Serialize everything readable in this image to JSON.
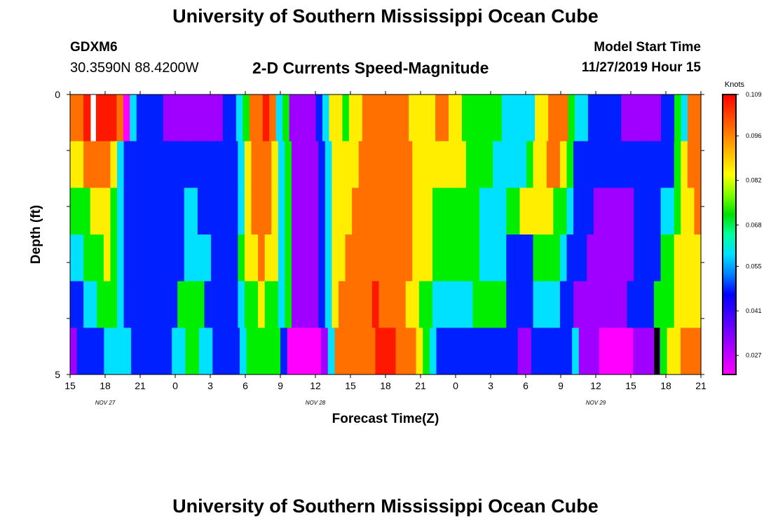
{
  "header": {
    "title": "University of Southern Mississippi Ocean Cube",
    "station": "GDXM6",
    "coords": "30.3590N 88.4200W",
    "subtitle": "2-D Currents Speed-Magnitude",
    "start_label": "Model Start Time",
    "start_time": "11/27/2019 Hour 15"
  },
  "footer": {
    "title": "University of Southern Mississippi Ocean Cube"
  },
  "chart_data": {
    "type": "heatmap",
    "xlabel": "Forecast Time(Z)",
    "ylabel": "Depth (ft)",
    "ylim": [
      0,
      5
    ],
    "y_ticks": [
      "0",
      "5"
    ],
    "x_tick_labels": [
      "15",
      "18",
      "21",
      "0",
      "3",
      "6",
      "9",
      "12",
      "15",
      "18",
      "21",
      "0",
      "3",
      "6",
      "9",
      "12",
      "15",
      "18",
      "21"
    ],
    "date_labels": [
      {
        "label": "NOV  27",
        "at_tick": 1
      },
      {
        "label": "NOV  28",
        "at_tick": 7
      },
      {
        "label": "NOV  29",
        "at_tick": 15
      }
    ],
    "time_range_hours": [
      0,
      54
    ],
    "depth_levels": 5,
    "colorbar": {
      "unit": "Knots",
      "ticks": [
        "0.109",
        "0.096",
        "0.082",
        "0.068",
        "0.055",
        "0.041",
        "0.027"
      ],
      "range": [
        0.021,
        0.109
      ]
    },
    "rows": [
      "OORRRRROMCBBBBPPPPPPPPPBBCLOOROCLPPPPBCYYLYYOOOOOOOYYYYOOYYLLLLLLCCCCCYYOOOLCCBBBBBPPPPPPBBLCOO",
      "YYOOOOYCBBBBBBBBBBBBBBBBBCYOOOYCLPPPPBCYYYYOOOOOOOOYYYYYYYYLLLLCCCCCLYYOOYLBBBBBBBBBBBBBBBLYOO",
      "LLLYYYLCBBBBBBBBBCCBBBBBBCYOOOYCLPPPPBCYYYOOOOOOOOOYYYLLLLLLLCCCCLLYYYYYLLCBBBPPPPPPBBBBCCLYYO",
      "CCLLLYLCBBBBBBBBBCCCCBBBBLYYOYYCLPPPPBCYYOOOOOOOOOOYYYLLLLLLLCCCCBBBBLLLLCBBBPPPPPPPBBBBLLYYYY",
      "BBCCLLLCBBBBBBBBLLLLBBBBBCLLYLLCLPPPPBCYOOOOOROOOOYYLLCCCCCCLLLLLBBBBCCCCBBPPPPPPPPBBBBLLLYYYY",
      "PBBBBCCCCBBBBBBCCLLCCBBBBCLLLLLBMMMMMPCOOOOOORRROOOYLCBBBBBBBBBBBBPPBBBBBBCPPPMMMMMPPPPLYYOOO"
    ],
    "missing": [
      {
        "col": 3,
        "row": 0,
        "color": "#ffffff"
      },
      {
        "col": 86,
        "row": 5,
        "color": "#000000"
      }
    ],
    "palette": {
      "M": "#ff00ff",
      "P": "#a000ff",
      "B": "#0020ff",
      "C": "#00e0ff",
      "L": "#00ee00",
      "Y": "#ffee00",
      "O": "#ff7000",
      "R": "#ff1800"
    },
    "colorbar_colors": [
      "#ff0000",
      "#ff4000",
      "#ff8000",
      "#ffc000",
      "#ffff00",
      "#80ff00",
      "#00e000",
      "#00ffa0",
      "#00e0ff",
      "#0080ff",
      "#0000ff",
      "#4000ff",
      "#8000ff",
      "#c000ff",
      "#ff00ff"
    ],
    "grid": false
  }
}
